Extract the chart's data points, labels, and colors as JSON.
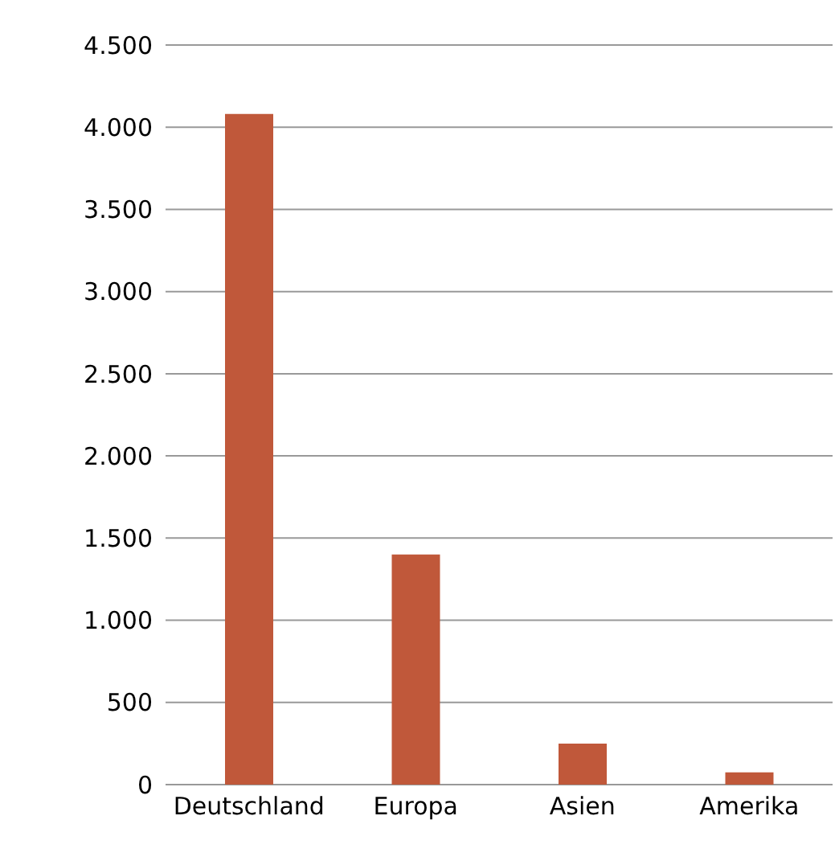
{
  "chart_data": {
    "type": "bar",
    "categories": [
      "Deutschland",
      "Europa",
      "Asien",
      "Amerika"
    ],
    "values": [
      4080,
      1400,
      250,
      75
    ],
    "color": "#c0583a",
    "ylim": [
      0,
      4500
    ],
    "yticks": [
      {
        "value": 0,
        "label": "0"
      },
      {
        "value": 500,
        "label": "500"
      },
      {
        "value": 1000,
        "label": "1.000"
      },
      {
        "value": 1500,
        "label": "1.500"
      },
      {
        "value": 2000,
        "label": "2.000"
      },
      {
        "value": 2500,
        "label": "2.500"
      },
      {
        "value": 3000,
        "label": "3.000"
      },
      {
        "value": 3500,
        "label": "3.500"
      },
      {
        "value": 4000,
        "label": "4.000"
      },
      {
        "value": 4500,
        "label": "4.500"
      }
    ],
    "grid": "y"
  }
}
